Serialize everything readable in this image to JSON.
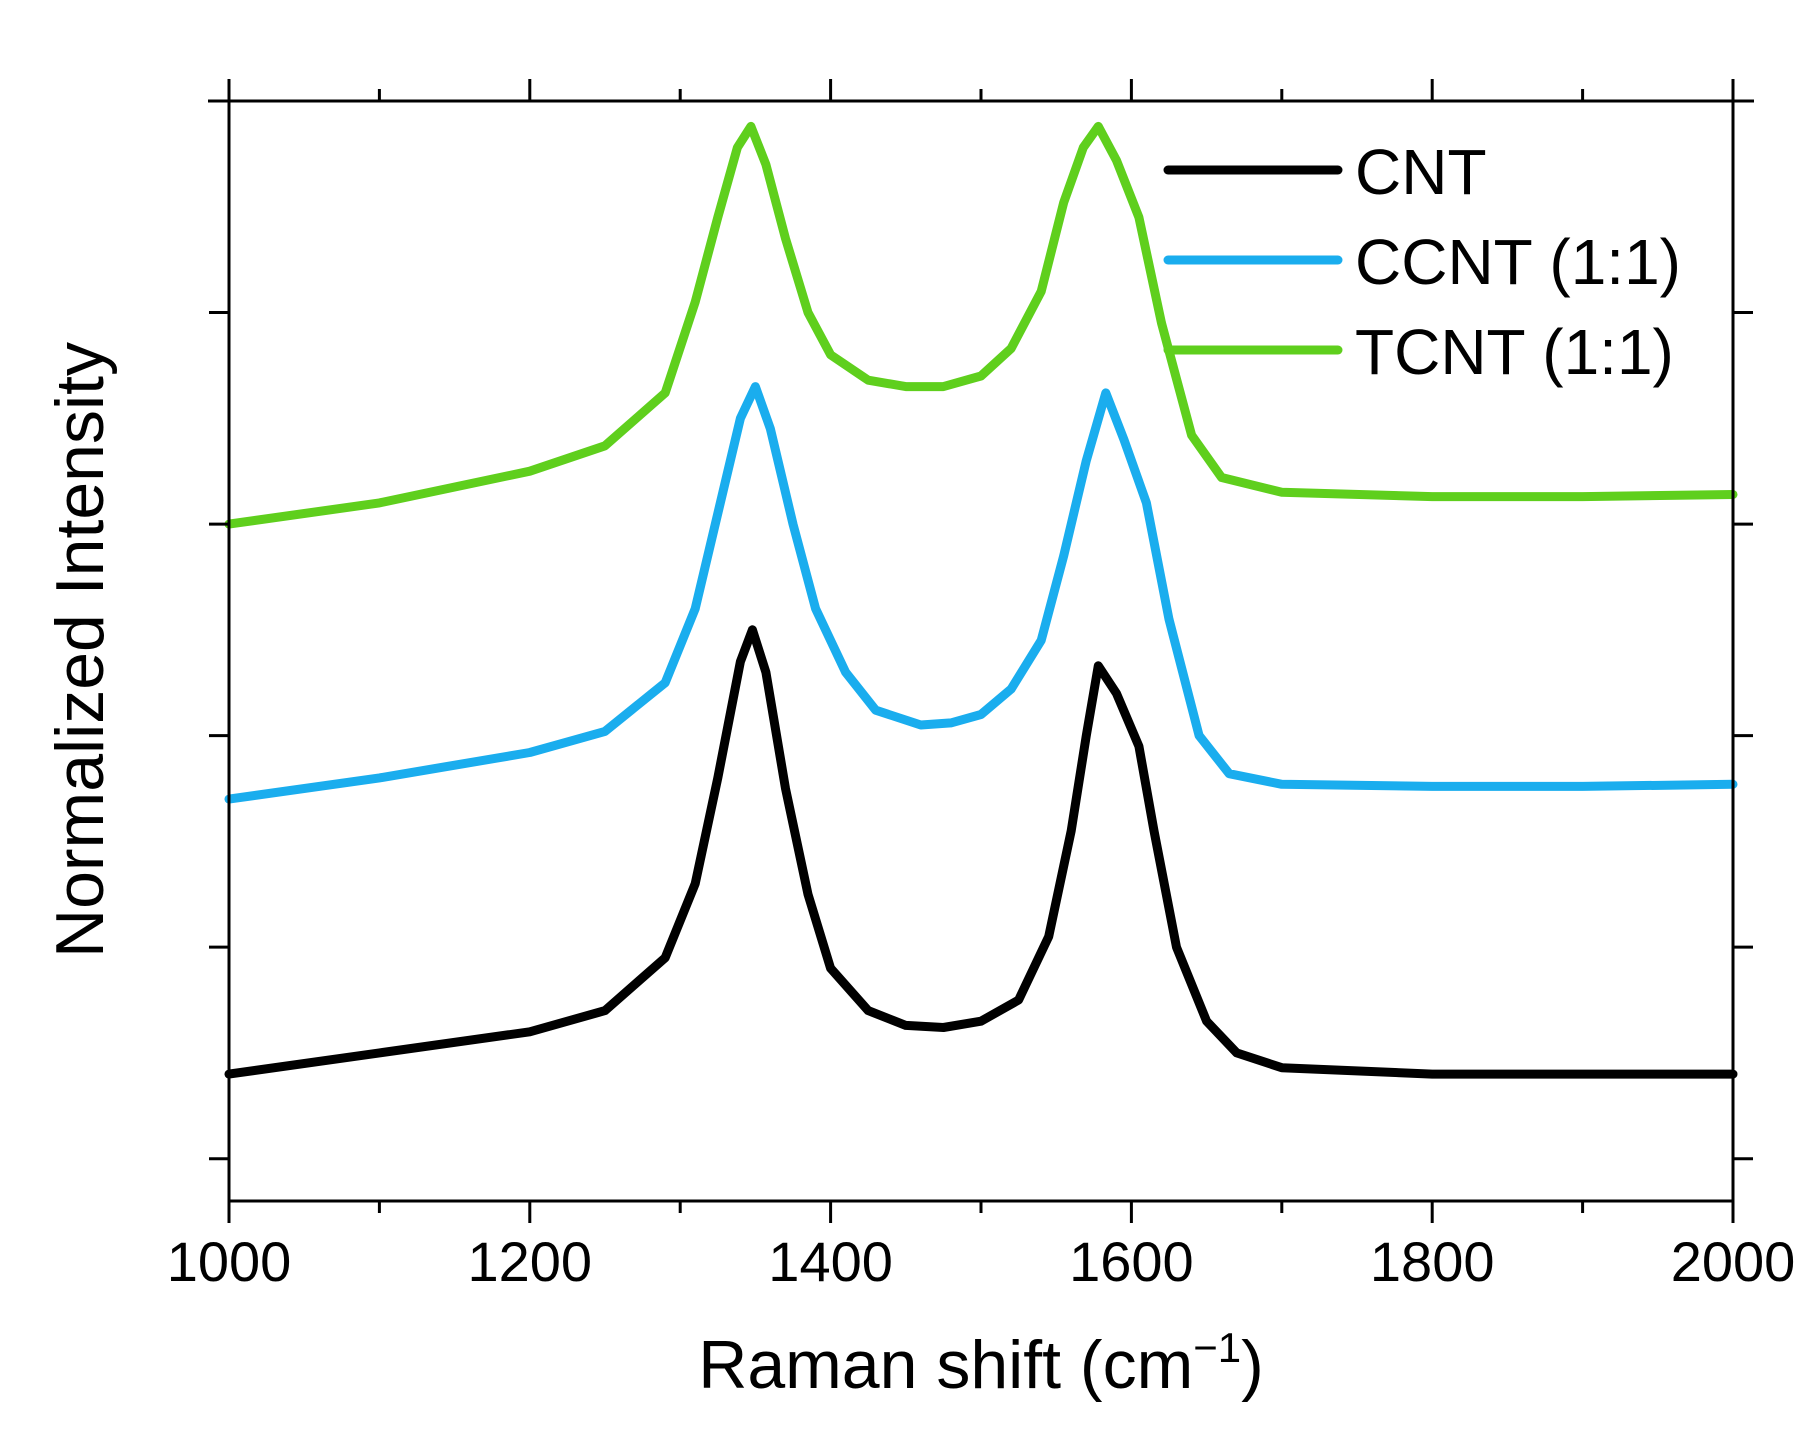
{
  "chart_data": {
    "type": "line",
    "title": "",
    "xlabel": "Raman shift (cm",
    "xlabel_sup": "−1",
    "xlabel_close": ")",
    "ylabel": "Normalized Intensity",
    "xlim": [
      1000,
      2000
    ],
    "ylim": [
      0,
      5.2
    ],
    "x_ticks": [
      1000,
      1200,
      1400,
      1600,
      1800,
      2000
    ],
    "x_tick_labels": [
      "1000",
      "1200",
      "1400",
      "1600",
      "1800",
      "2000"
    ],
    "x_minor_ticks": [
      1100,
      1300,
      1500,
      1700,
      1900
    ],
    "y_ticks": [
      0.2,
      1.2,
      2.2,
      3.2,
      4.2
    ],
    "y_tick_labels": [],
    "grid": false,
    "legend_position": "top-right",
    "series": [
      {
        "name": "CNT",
        "color": "#000000",
        "x": [
          1000,
          1100,
          1200,
          1250,
          1290,
          1310,
          1325,
          1340,
          1348,
          1357,
          1370,
          1385,
          1400,
          1425,
          1450,
          1475,
          1500,
          1525,
          1545,
          1560,
          1570,
          1578,
          1590,
          1605,
          1615,
          1630,
          1650,
          1670,
          1700,
          1800,
          1900,
          2000
        ],
        "values": [
          0.6,
          0.7,
          0.8,
          0.9,
          1.15,
          1.5,
          2.0,
          2.55,
          2.7,
          2.5,
          1.95,
          1.45,
          1.1,
          0.9,
          0.83,
          0.82,
          0.85,
          0.95,
          1.25,
          1.75,
          2.2,
          2.53,
          2.4,
          2.15,
          1.75,
          1.2,
          0.85,
          0.7,
          0.63,
          0.6,
          0.6,
          0.6
        ]
      },
      {
        "name": "CCNT (1:1)",
        "color": "#1aadee",
        "x": [
          1000,
          1100,
          1200,
          1250,
          1290,
          1310,
          1325,
          1340,
          1350,
          1360,
          1375,
          1390,
          1410,
          1430,
          1460,
          1480,
          1500,
          1520,
          1540,
          1555,
          1570,
          1583,
          1595,
          1610,
          1625,
          1645,
          1665,
          1700,
          1800,
          1900,
          2000
        ],
        "values": [
          1.9,
          2.0,
          2.12,
          2.22,
          2.45,
          2.8,
          3.25,
          3.7,
          3.85,
          3.65,
          3.2,
          2.8,
          2.5,
          2.32,
          2.25,
          2.26,
          2.3,
          2.42,
          2.65,
          3.05,
          3.5,
          3.82,
          3.6,
          3.3,
          2.75,
          2.2,
          2.02,
          1.97,
          1.96,
          1.96,
          1.97
        ]
      },
      {
        "name": "TCNT (1:1)",
        "color": "#5fcf1d",
        "x": [
          1000,
          1100,
          1200,
          1250,
          1290,
          1310,
          1325,
          1338,
          1347,
          1357,
          1370,
          1385,
          1400,
          1425,
          1450,
          1475,
          1500,
          1520,
          1540,
          1555,
          1568,
          1578,
          1590,
          1605,
          1620,
          1640,
          1660,
          1700,
          1800,
          1900,
          2000
        ],
        "values": [
          3.2,
          3.3,
          3.45,
          3.57,
          3.82,
          4.25,
          4.65,
          4.98,
          5.08,
          4.9,
          4.55,
          4.2,
          4.0,
          3.88,
          3.85,
          3.85,
          3.9,
          4.03,
          4.3,
          4.72,
          4.98,
          5.08,
          4.92,
          4.65,
          4.15,
          3.62,
          3.42,
          3.35,
          3.33,
          3.33,
          3.34
        ]
      }
    ]
  }
}
